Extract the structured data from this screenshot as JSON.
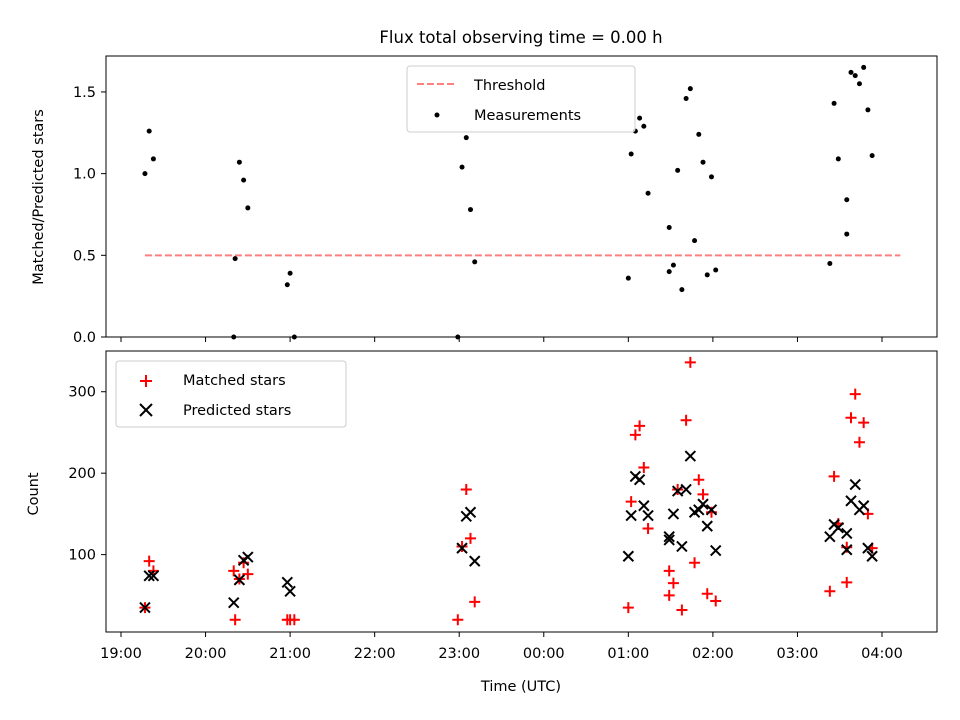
{
  "title": "Flux total observing time = 0.00 h",
  "xlabel": "Time (UTC)",
  "x_ticks": [
    "19:00",
    "20:00",
    "21:00",
    "22:00",
    "23:00",
    "00:00",
    "01:00",
    "02:00",
    "03:00",
    "04:00"
  ],
  "chart_data": [
    {
      "type": "scatter",
      "title": "Flux total observing time = 0.00 h",
      "xlabel": "",
      "ylabel": "Matched/Predicted stars",
      "ylim": [
        0,
        1.72
      ],
      "y_ticks": [
        "0.0",
        "0.5",
        "1.0",
        "1.5"
      ],
      "grid": false,
      "legend_position": "top-center",
      "threshold": {
        "name": "Threshold",
        "value": 0.5,
        "x_start": "19:17",
        "x_end": "04:13",
        "color": "#ff7f7f"
      },
      "series": [
        {
          "name": "Measurements",
          "color": "#000000",
          "points": [
            [
              "19:17",
              1.0
            ],
            [
              "19:20",
              1.26
            ],
            [
              "19:23",
              1.09
            ],
            [
              "20:20",
              0.0
            ],
            [
              "20:21",
              0.48
            ],
            [
              "20:24",
              1.07
            ],
            [
              "20:27",
              0.96
            ],
            [
              "20:30",
              0.79
            ],
            [
              "20:58",
              0.32
            ],
            [
              "21:00",
              0.39
            ],
            [
              "21:03",
              0.0
            ],
            [
              "22:59",
              0.0
            ],
            [
              "23:02",
              1.04
            ],
            [
              "23:05",
              1.22
            ],
            [
              "23:08",
              0.78
            ],
            [
              "23:11",
              0.46
            ],
            [
              "01:00",
              0.36
            ],
            [
              "01:02",
              1.12
            ],
            [
              "01:05",
              1.26
            ],
            [
              "01:08",
              1.34
            ],
            [
              "01:11",
              1.29
            ],
            [
              "01:14",
              0.88
            ],
            [
              "01:29",
              0.67
            ],
            [
              "01:29",
              0.4
            ],
            [
              "01:32",
              0.44
            ],
            [
              "01:35",
              1.02
            ],
            [
              "01:38",
              0.29
            ],
            [
              "01:41",
              1.46
            ],
            [
              "01:44",
              1.52
            ],
            [
              "01:47",
              0.59
            ],
            [
              "01:50",
              1.24
            ],
            [
              "01:53",
              1.07
            ],
            [
              "01:56",
              0.38
            ],
            [
              "01:59",
              0.98
            ],
            [
              "02:02",
              0.41
            ],
            [
              "03:23",
              0.45
            ],
            [
              "03:26",
              1.43
            ],
            [
              "03:29",
              1.09
            ],
            [
              "03:35",
              0.63
            ],
            [
              "03:35",
              0.84
            ],
            [
              "03:38",
              1.62
            ],
            [
              "03:41",
              1.6
            ],
            [
              "03:44",
              1.55
            ],
            [
              "03:47",
              1.65
            ],
            [
              "03:50",
              1.39
            ],
            [
              "03:53",
              1.11
            ]
          ]
        }
      ]
    },
    {
      "type": "scatter",
      "title": "",
      "xlabel": "Time (UTC)",
      "ylabel": "Count",
      "ylim": [
        5,
        350
      ],
      "y_ticks": [
        "100",
        "200",
        "300"
      ],
      "grid": false,
      "legend_position": "top-left",
      "series": [
        {
          "name": "Matched stars",
          "color": "#ff0000",
          "marker": "+",
          "points": [
            [
              "19:17",
              35
            ],
            [
              "19:20",
              92
            ],
            [
              "19:23",
              80
            ],
            [
              "20:20",
              80
            ],
            [
              "20:21",
              20
            ],
            [
              "20:24",
              70
            ],
            [
              "20:27",
              90
            ],
            [
              "20:30",
              76
            ],
            [
              "20:58",
              20
            ],
            [
              "21:00",
              20
            ],
            [
              "21:03",
              20
            ],
            [
              "22:59",
              20
            ],
            [
              "23:02",
              110
            ],
            [
              "23:05",
              180
            ],
            [
              "23:08",
              120
            ],
            [
              "23:11",
              42
            ],
            [
              "01:00",
              35
            ],
            [
              "01:02",
              165
            ],
            [
              "01:05",
              247
            ],
            [
              "01:08",
              258
            ],
            [
              "01:11",
              207
            ],
            [
              "01:14",
              132
            ],
            [
              "01:29",
              80
            ],
            [
              "01:29",
              50
            ],
            [
              "01:32",
              65
            ],
            [
              "01:35",
              180
            ],
            [
              "01:38",
              32
            ],
            [
              "01:41",
              265
            ],
            [
              "01:44",
              336
            ],
            [
              "01:47",
              90
            ],
            [
              "01:50",
              192
            ],
            [
              "01:53",
              174
            ],
            [
              "01:56",
              52
            ],
            [
              "01:59",
              152
            ],
            [
              "02:02",
              43
            ],
            [
              "03:23",
              55
            ],
            [
              "03:26",
              196
            ],
            [
              "03:29",
              138
            ],
            [
              "03:35",
              66
            ],
            [
              "03:35",
              109
            ],
            [
              "03:38",
              268
            ],
            [
              "03:41",
              297
            ],
            [
              "03:44",
              238
            ],
            [
              "03:47",
              262
            ],
            [
              "03:50",
              150
            ],
            [
              "03:53",
              108
            ]
          ]
        },
        {
          "name": "Predicted stars",
          "color": "#000000",
          "marker": "x",
          "points": [
            [
              "19:17",
              35
            ],
            [
              "19:20",
              74
            ],
            [
              "19:23",
              74
            ],
            [
              "20:20",
              41
            ],
            [
              "20:24",
              69
            ],
            [
              "20:27",
              93
            ],
            [
              "20:30",
              97
            ],
            [
              "20:58",
              66
            ],
            [
              "21:00",
              55
            ],
            [
              "23:02",
              108
            ],
            [
              "23:05",
              147
            ],
            [
              "23:08",
              152
            ],
            [
              "23:11",
              92
            ],
            [
              "01:00",
              98
            ],
            [
              "01:02",
              148
            ],
            [
              "01:05",
              196
            ],
            [
              "01:08",
              192
            ],
            [
              "01:11",
              160
            ],
            [
              "01:14",
              148
            ],
            [
              "01:29",
              122
            ],
            [
              "01:29",
              118
            ],
            [
              "01:32",
              150
            ],
            [
              "01:35",
              178
            ],
            [
              "01:38",
              110
            ],
            [
              "01:41",
              180
            ],
            [
              "01:44",
              221
            ],
            [
              "01:47",
              152
            ],
            [
              "01:50",
              155
            ],
            [
              "01:53",
              162
            ],
            [
              "01:56",
              135
            ],
            [
              "01:59",
              155
            ],
            [
              "02:02",
              105
            ],
            [
              "03:23",
              122
            ],
            [
              "03:26",
              137
            ],
            [
              "03:29",
              133
            ],
            [
              "03:35",
              126
            ],
            [
              "03:35",
              106
            ],
            [
              "03:38",
              166
            ],
            [
              "03:41",
              186
            ],
            [
              "03:44",
              155
            ],
            [
              "03:47",
              160
            ],
            [
              "03:50",
              108
            ],
            [
              "03:53",
              98
            ]
          ]
        }
      ]
    }
  ]
}
